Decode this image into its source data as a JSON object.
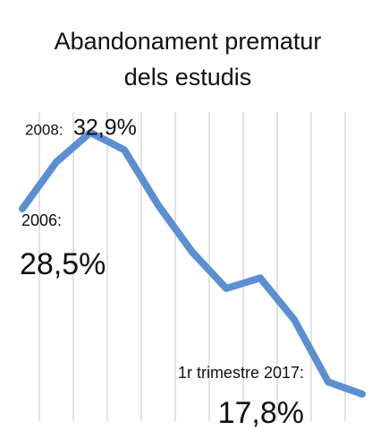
{
  "chart_data": {
    "type": "line",
    "title": [
      "Abandonament prematur",
      "dels estudis"
    ],
    "categories": [
      null,
      null,
      null,
      null,
      null,
      null,
      null,
      null,
      null,
      null,
      null
    ],
    "series": [
      {
        "color": "#5b8fd1",
        "values": [
          28.5,
          31.2,
          32.9,
          31.9,
          28.7,
          26.0,
          23.9,
          24.5,
          22.1,
          18.5,
          17.8
        ],
        "value_labels": [
          "28,5%",
          null,
          "32,9%",
          null,
          null,
          null,
          null,
          null,
          null,
          null,
          "17,8%"
        ]
      }
    ],
    "annotations": [
      "2006:",
      "2008:",
      "1r trimestre 2017:"
    ],
    "ylim": [
      16.5,
      34.5
    ],
    "grid": true
  }
}
